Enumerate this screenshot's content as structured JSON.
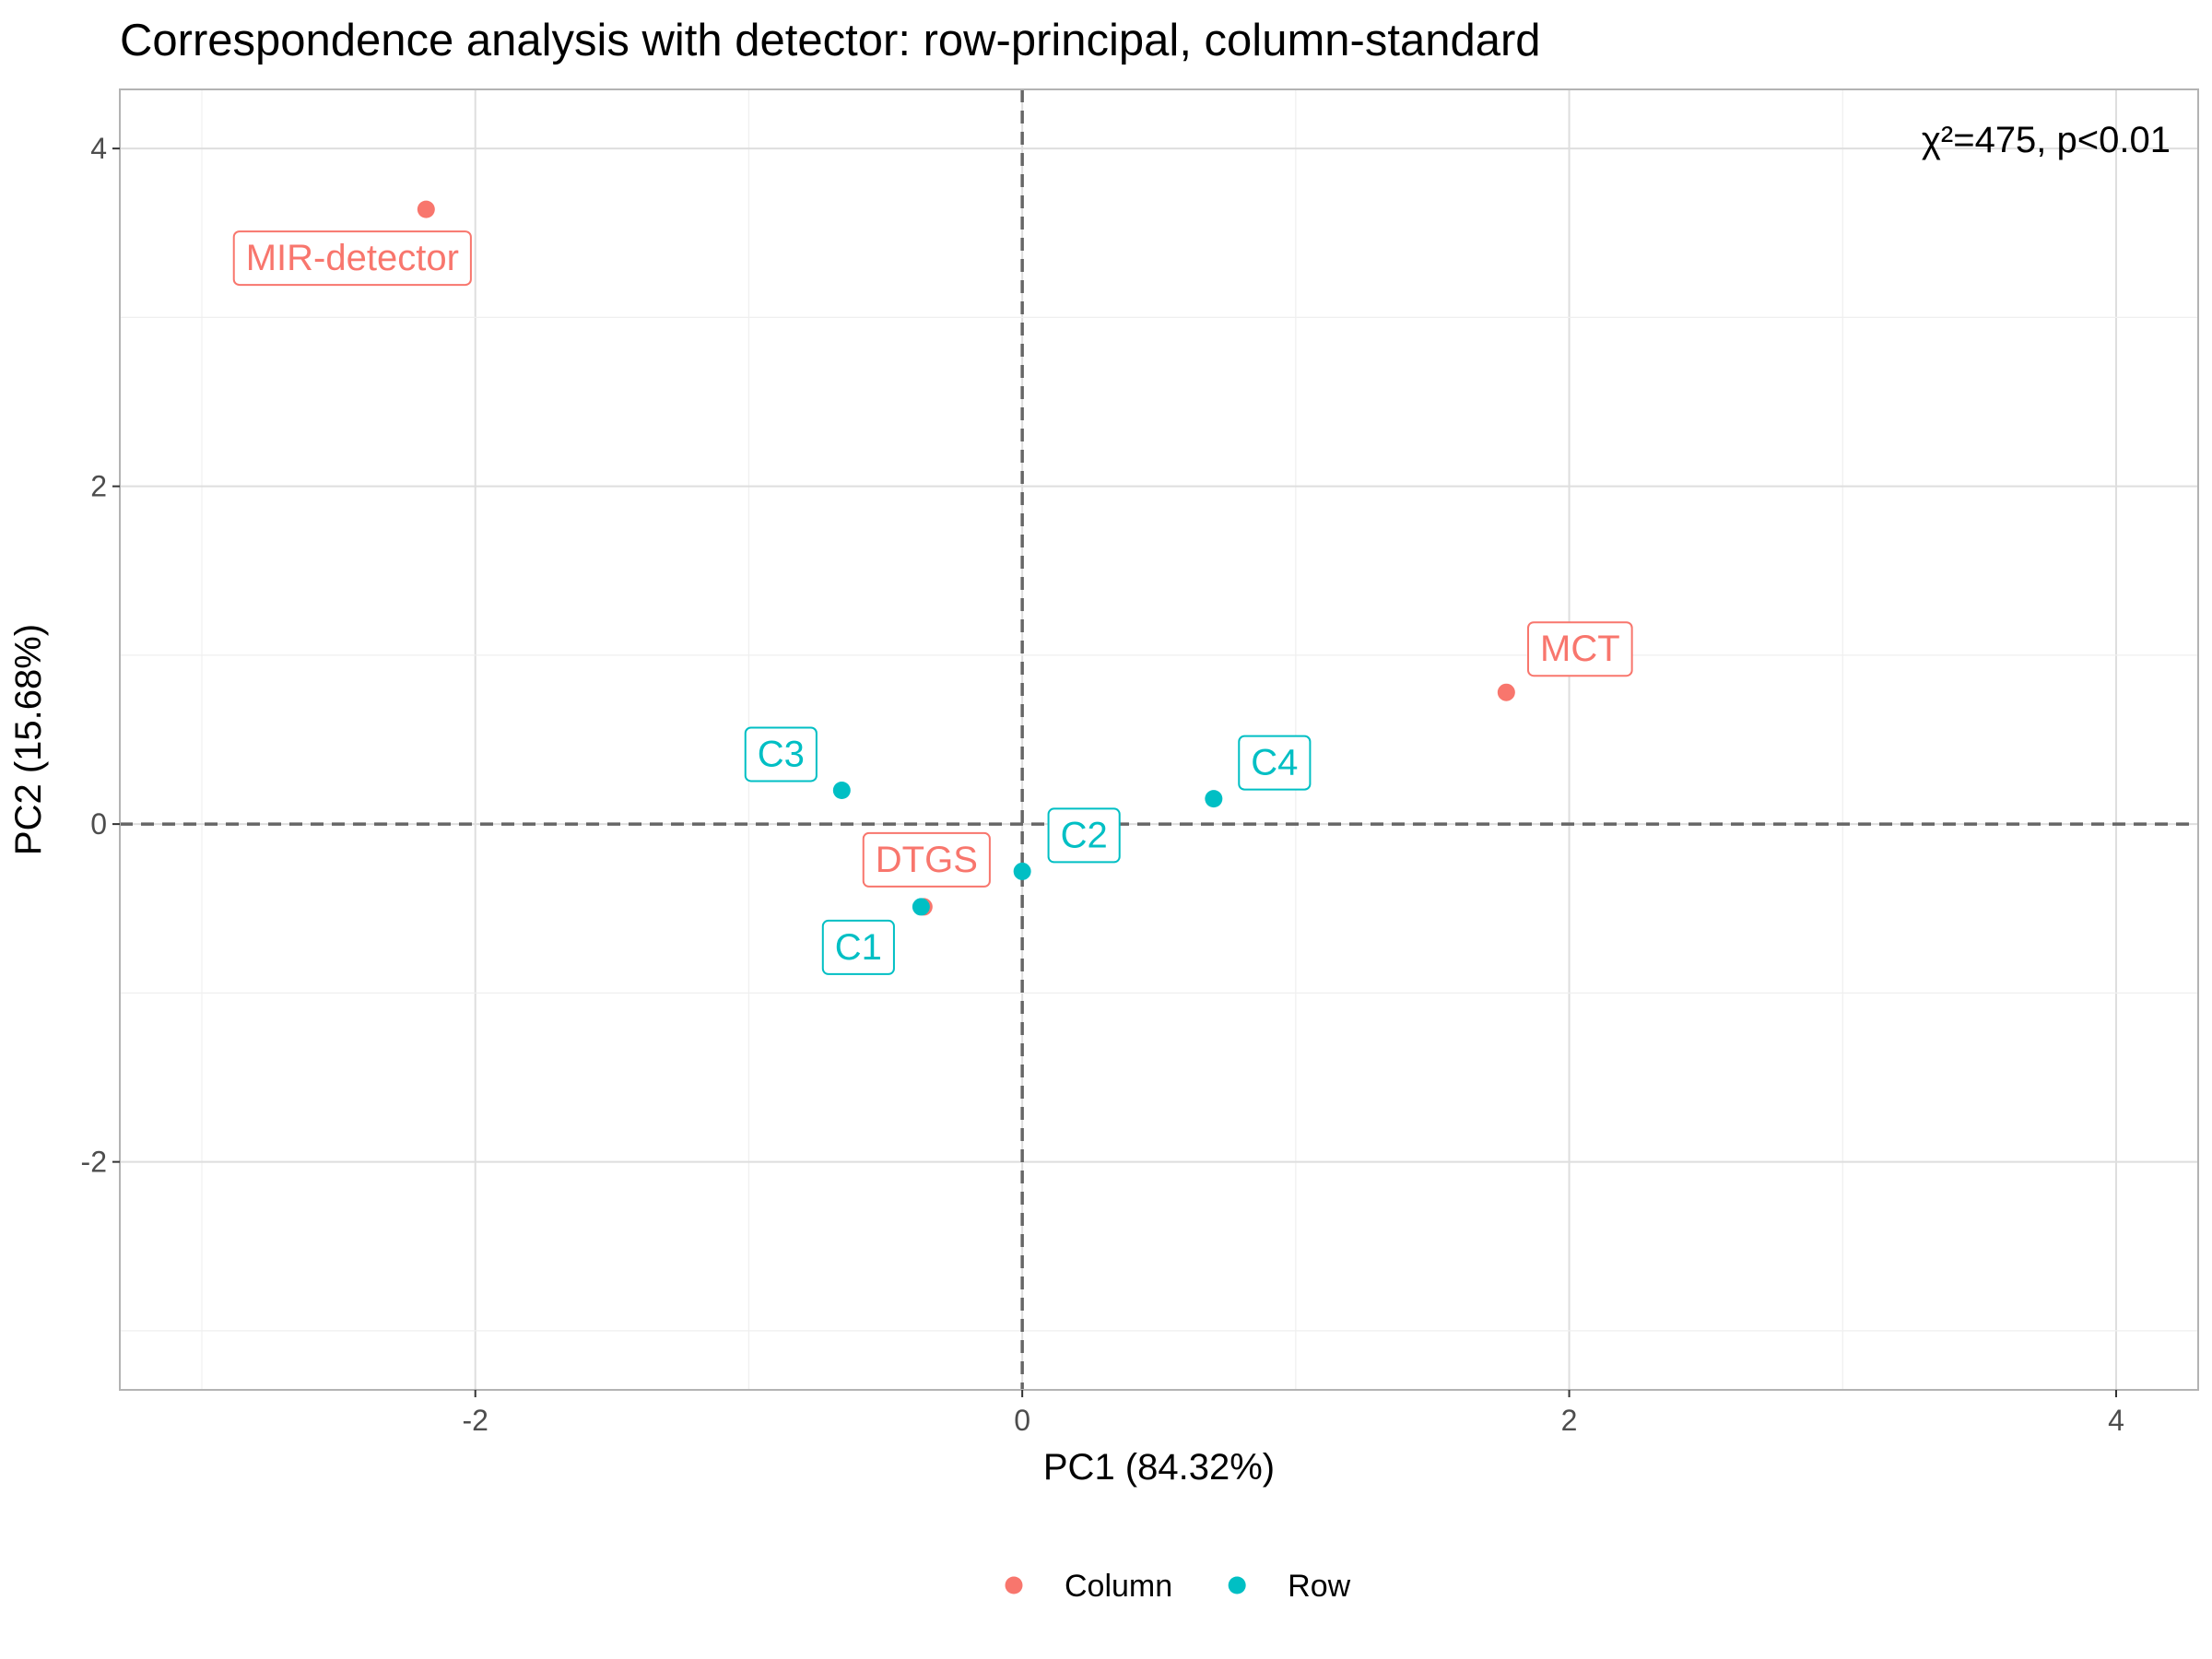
{
  "chart_data": {
    "type": "scatter",
    "title": "Correspondence analysis with detector: row-principal, column-standard",
    "xlabel": "PC1 (84.32%)",
    "ylabel": "PC2 (15.68%)",
    "xlim": [
      -3.3,
      4.3
    ],
    "ylim": [
      -3.35,
      4.35
    ],
    "x_ticks": [
      -2,
      0,
      2,
      4
    ],
    "y_ticks": [
      -2,
      0,
      2,
      4
    ],
    "x_tick_labels": [
      "-2",
      "0",
      "2",
      "4"
    ],
    "y_tick_labels": [
      "-2",
      "0",
      "2",
      "4"
    ],
    "grid": true,
    "reference_lines": {
      "x": 0,
      "y": 0,
      "style": "dashed"
    },
    "annotation": "χ²=475, p<0.01",
    "legend_position": "bottom",
    "series": [
      {
        "name": "Column",
        "color": "#F8766D",
        "points": [
          {
            "label": "MIR-detector",
            "x": -2.18,
            "y": 3.64
          },
          {
            "label": "MCT",
            "x": 1.77,
            "y": 0.78
          },
          {
            "label": "DTGS",
            "x": -0.36,
            "y": -0.49
          }
        ]
      },
      {
        "name": "Row",
        "color": "#00BFC4",
        "points": [
          {
            "label": "C3",
            "x": -0.66,
            "y": 0.2
          },
          {
            "label": "C4",
            "x": 0.7,
            "y": 0.15
          },
          {
            "label": "C2",
            "x": 0.0,
            "y": -0.28
          },
          {
            "label": "C1",
            "x": -0.37,
            "y": -0.49
          }
        ]
      }
    ]
  }
}
